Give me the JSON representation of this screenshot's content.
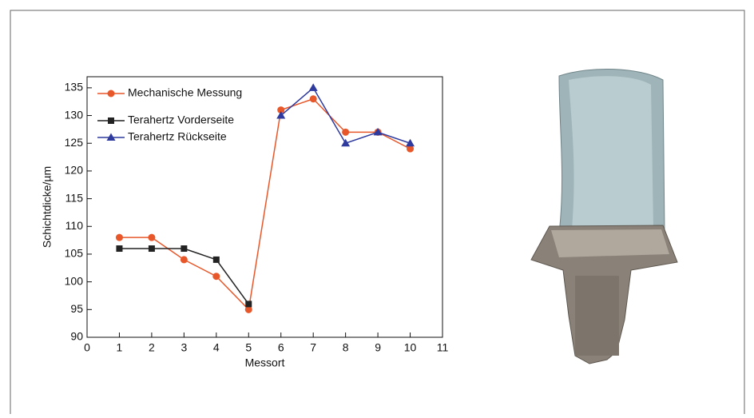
{
  "chart_data": {
    "type": "line",
    "xlabel": "Messort",
    "ylabel": "Schichtdicke/µm",
    "xlim": [
      0,
      11
    ],
    "xticks": [
      0,
      1,
      2,
      3,
      4,
      5,
      6,
      7,
      8,
      9,
      10,
      11
    ],
    "ylim": [
      90,
      137
    ],
    "yticks": [
      90,
      95,
      100,
      105,
      110,
      115,
      120,
      125,
      130,
      135
    ],
    "legend": "upper left",
    "series": [
      {
        "name": "Mechanische Messung",
        "color": "#e8572a",
        "marker": "circle",
        "x": [
          1,
          2,
          3,
          4,
          5,
          6,
          7,
          8,
          9,
          10
        ],
        "values": [
          108,
          108,
          104,
          101,
          95,
          131,
          133,
          127,
          127,
          124
        ]
      },
      {
        "name": "Terahertz Vorderseite",
        "color": "#222222",
        "marker": "square",
        "x": [
          1,
          2,
          3,
          4,
          5
        ],
        "values": [
          106,
          106,
          106,
          104,
          96
        ]
      },
      {
        "name": "Terahertz Rückseite",
        "color": "#2e3a9e",
        "marker": "triangle",
        "x": [
          6,
          7,
          8,
          9,
          10
        ],
        "values": [
          130,
          135,
          125,
          127,
          125
        ]
      }
    ]
  }
}
